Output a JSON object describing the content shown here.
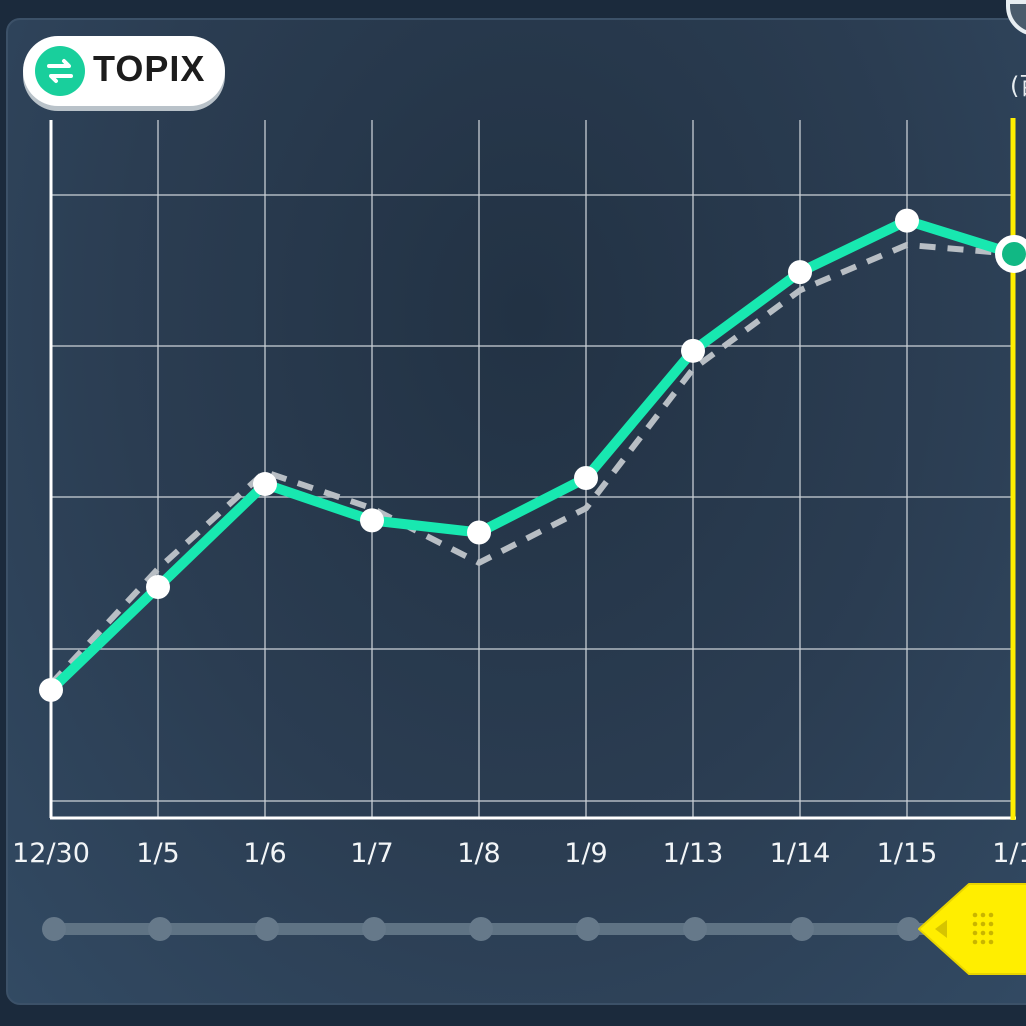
{
  "header": {
    "badge_label": "TOPIX",
    "badge_icon": "swap-arrows-icon",
    "unit_label": "(百"
  },
  "colors": {
    "main_line": "#18e8b0",
    "compare_line": "#b8bec4",
    "grid": "#c9d0d6",
    "axis": "#ffffff",
    "cursor": "#ffee00",
    "selected_point": "#11b884"
  },
  "chart_data": {
    "type": "line",
    "categories": [
      "12/30",
      "1/5",
      "1/6",
      "1/7",
      "1/8",
      "1/9",
      "1/13",
      "1/14",
      "1/15",
      "1/1"
    ],
    "ylim": [
      0,
      9
    ],
    "series": [
      {
        "values": [
          1.9,
          3.6,
          5.3,
          4.7,
          4.5,
          5.4,
          7.5,
          8.8,
          9.65,
          9.1
        ]
      },
      {
        "values": [
          2.0,
          3.9,
          5.5,
          4.9,
          4.0,
          4.9,
          7.2,
          8.5,
          9.25,
          9.1
        ]
      }
    ],
    "selected_index": 9,
    "grid": true,
    "legend": "none"
  },
  "slider": {
    "selected_index": 9
  }
}
